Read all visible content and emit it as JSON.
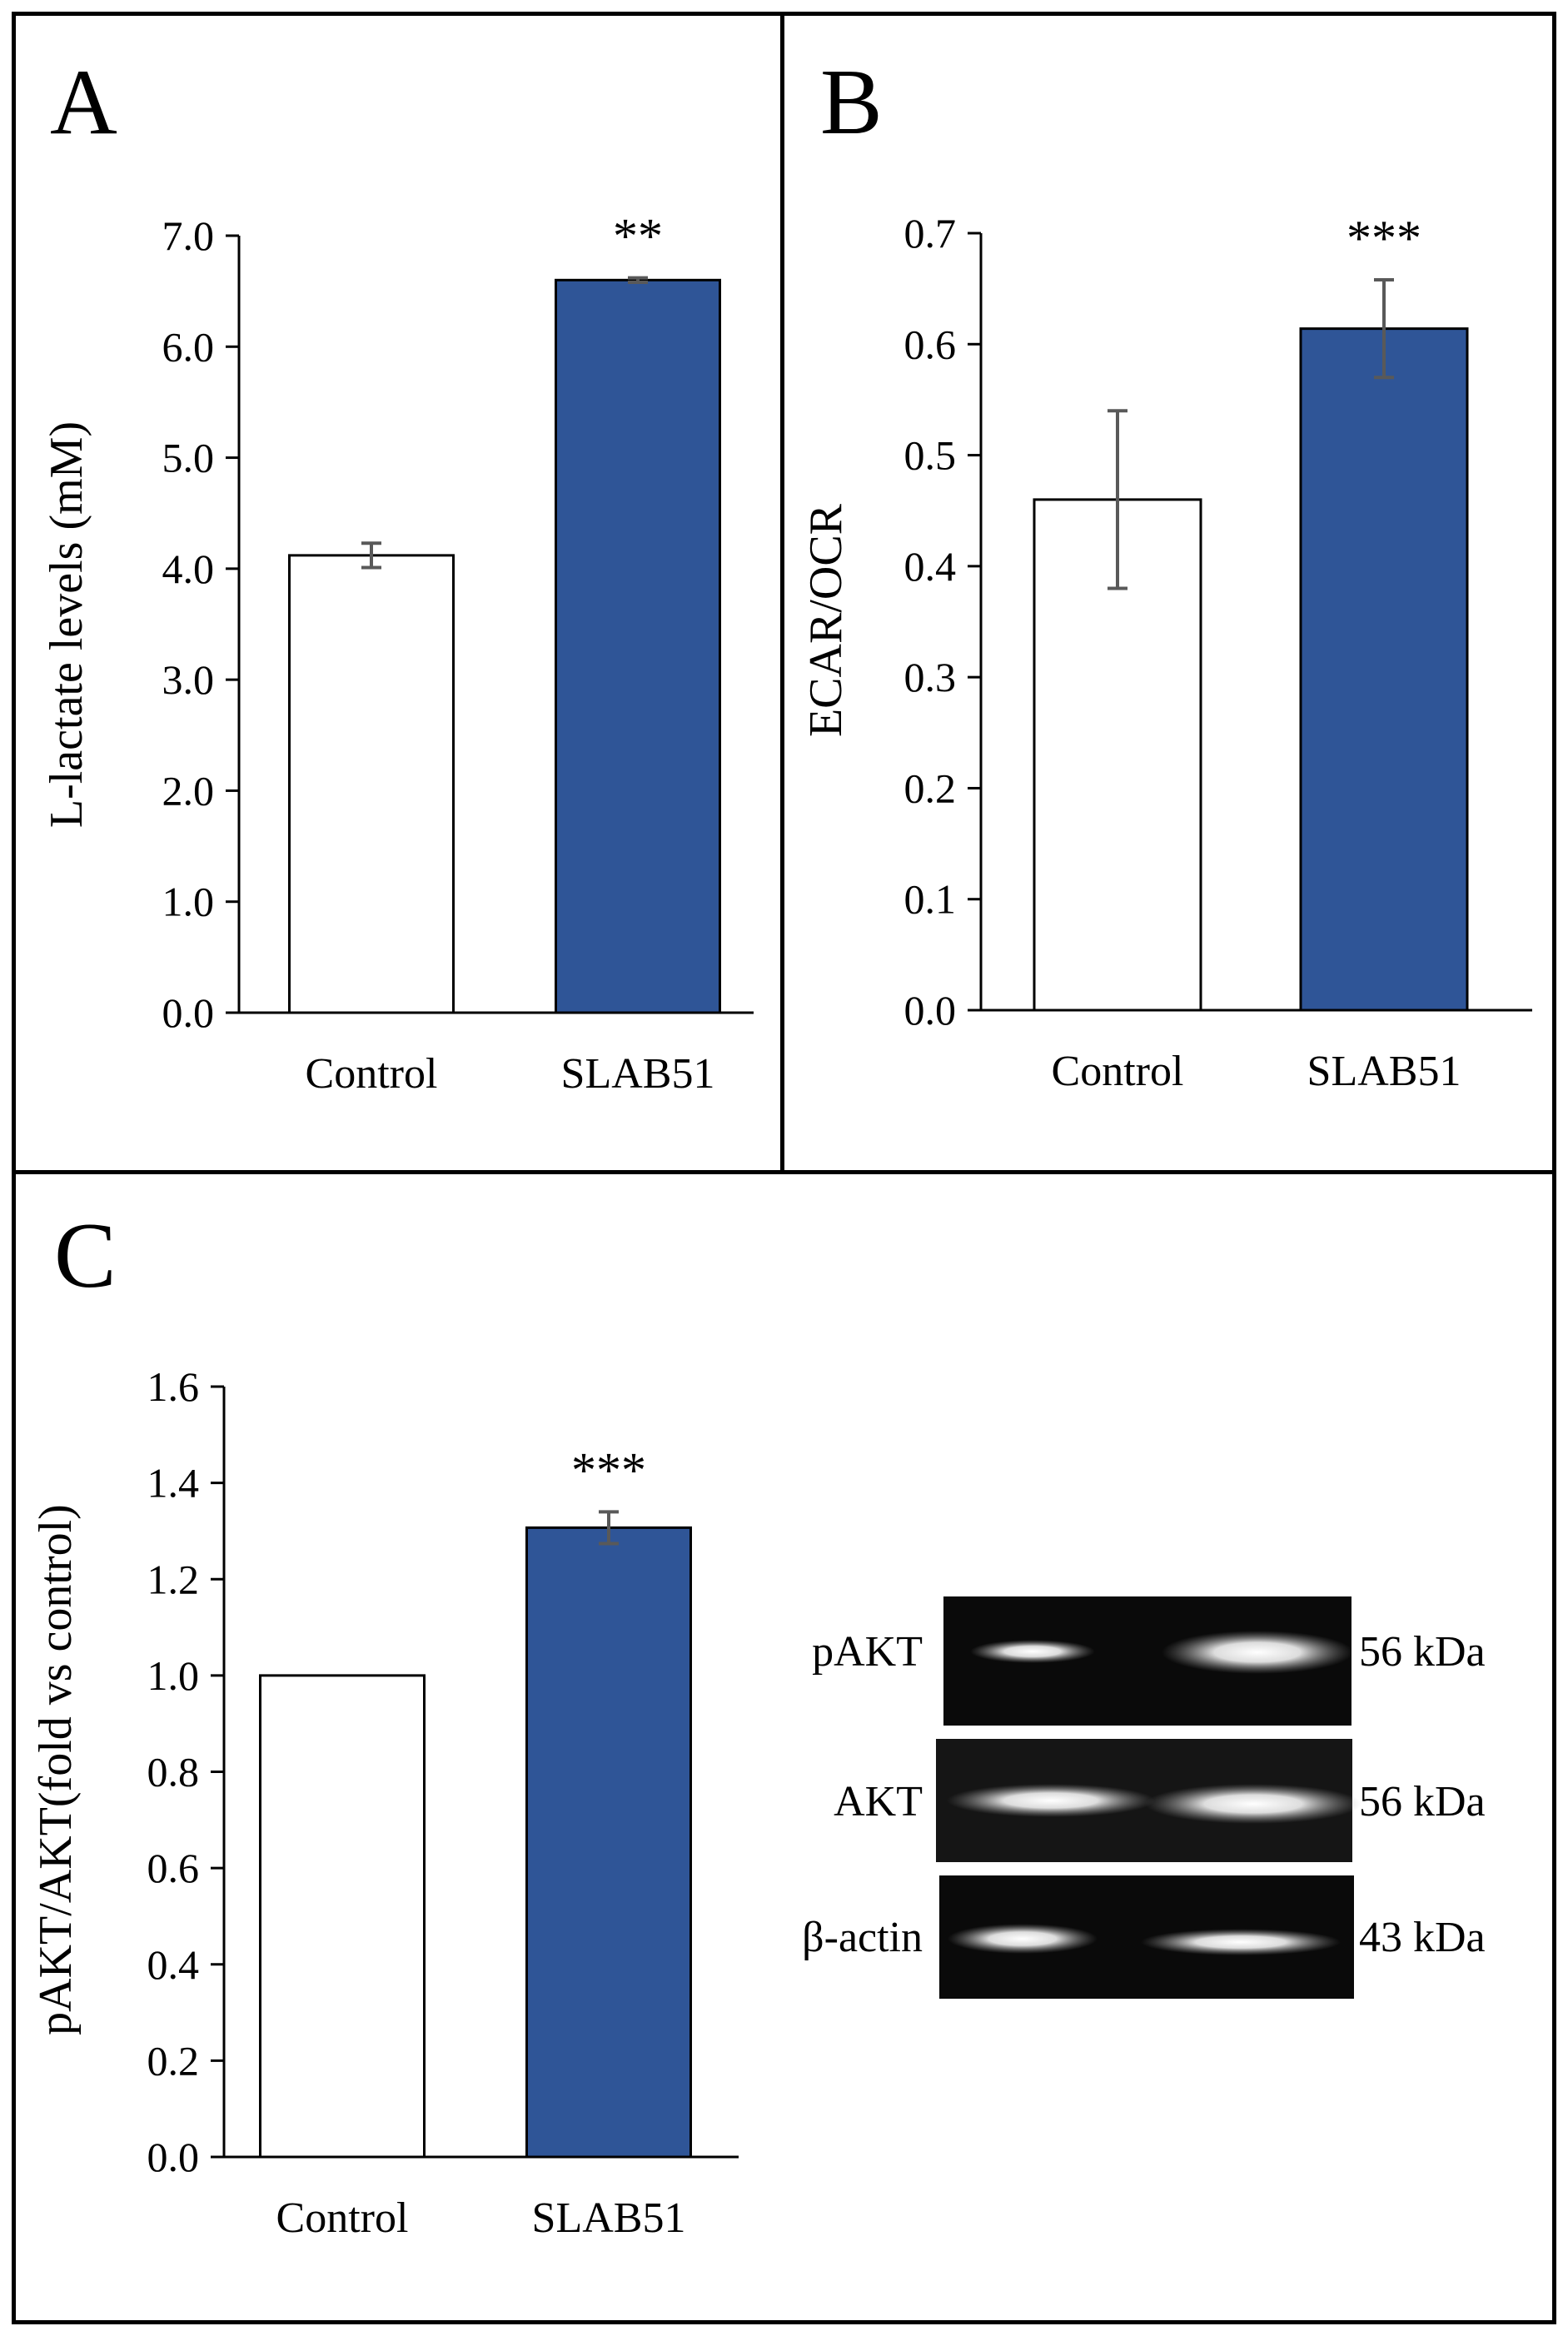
{
  "colors": {
    "control": "#ffffff",
    "treatment": "#2f5597",
    "axis": "#000000",
    "error_bar": "#595959"
  },
  "chart_data": [
    {
      "panel": "A",
      "type": "bar",
      "categories": [
        "Control",
        "SLAB51"
      ],
      "values": [
        4.12,
        6.6
      ],
      "errors": [
        0.11,
        0.02
      ],
      "ylabel": "L-lactate levels (mM)",
      "xlabel": "",
      "ylim": [
        0,
        7
      ],
      "ticks": [
        "0.0",
        "1.0",
        "2.0",
        "3.0",
        "4.0",
        "5.0",
        "6.0",
        "7.0"
      ],
      "significance": [
        "",
        "**"
      ],
      "grid": false
    },
    {
      "panel": "B",
      "type": "bar",
      "categories": [
        "Control",
        "SLAB51"
      ],
      "values": [
        0.46,
        0.614
      ],
      "errors": [
        0.08,
        0.044
      ],
      "ylabel": "ECAR/OCR",
      "xlabel": "",
      "ylim": [
        0,
        0.7
      ],
      "ticks": [
        "0.0",
        "0.1",
        "0.2",
        "0.3",
        "0.4",
        "0.5",
        "0.6",
        "0.7"
      ],
      "significance": [
        "",
        "***"
      ],
      "grid": false
    },
    {
      "panel": "C",
      "type": "bar",
      "categories": [
        "Control",
        "SLAB51"
      ],
      "values": [
        1.0,
        1.307
      ],
      "errors": [
        0.0,
        0.033
      ],
      "ylabel": "pAKT/AKT(fold vs control)",
      "xlabel": "",
      "ylim": [
        0,
        1.6
      ],
      "ticks": [
        "0.0",
        "0.2",
        "0.4",
        "0.6",
        "0.8",
        "1.0",
        "1.2",
        "1.4",
        "1.6"
      ],
      "significance": [
        "",
        "***"
      ],
      "grid": false
    }
  ],
  "blot": {
    "rows": [
      {
        "label": "pAKT",
        "size": "56 kDa"
      },
      {
        "label": "AKT",
        "size": "56 kDa"
      },
      {
        "label": "β-actin",
        "size": "43 kDa"
      }
    ]
  }
}
